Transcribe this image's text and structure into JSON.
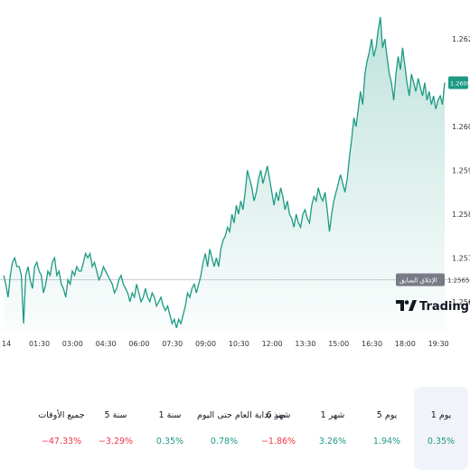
{
  "chart_data": {
    "type": "area",
    "line_color": "#1d9a84",
    "fill_color": "#1d9a84",
    "grid": false,
    "x_ticks": [
      "14",
      "01:30",
      "03:00",
      "04:30",
      "06:00",
      "07:30",
      "09:00",
      "10:30",
      "12:00",
      "13:30",
      "15:00",
      "16:30",
      "18:00",
      "19:30"
    ],
    "y_ticks": [
      "1.26200",
      "1.26000",
      "1.25900",
      "1.25800",
      "1.25700",
      "1.25600"
    ],
    "ylim": [
      1.2555,
      1.2626
    ],
    "current_price_label": "1.26097",
    "reference_line": {
      "label": "الإغلاق السابق",
      "value_label": "1.25650",
      "value": 1.2565
    },
    "series": [
      {
        "values": [
          1.2566,
          1.2564,
          1.2561,
          1.2566,
          1.2569,
          1.257,
          1.2568,
          1.2568,
          1.2566,
          1.2555,
          1.2566,
          1.2568,
          1.2565,
          1.2563,
          1.2568,
          1.2569,
          1.2567,
          1.2566,
          1.2562,
          1.2564,
          1.2567,
          1.2566,
          1.2569,
          1.257,
          1.2566,
          1.2567,
          1.2564,
          1.2563,
          1.2561,
          1.2565,
          1.2564,
          1.2567,
          1.2566,
          1.2568,
          1.2567,
          1.2567,
          1.2569,
          1.2571,
          1.257,
          1.2571,
          1.2568,
          1.2569,
          1.2567,
          1.2565,
          1.2566,
          1.2568,
          1.2567,
          1.2566,
          1.2565,
          1.2564,
          1.2562,
          1.2563,
          1.2565,
          1.2566,
          1.2564,
          1.2563,
          1.2562,
          1.256,
          1.2562,
          1.2561,
          1.2564,
          1.2562,
          1.256,
          1.2561,
          1.2563,
          1.2561,
          1.256,
          1.2562,
          1.2561,
          1.2559,
          1.256,
          1.2561,
          1.2559,
          1.2558,
          1.2559,
          1.2557,
          1.2555,
          1.2556,
          1.2554,
          1.2556,
          1.2555,
          1.2557,
          1.2559,
          1.2562,
          1.2561,
          1.2563,
          1.2564,
          1.2562,
          1.2564,
          1.2566,
          1.2569,
          1.2571,
          1.2568,
          1.2572,
          1.257,
          1.2568,
          1.257,
          1.2568,
          1.2572,
          1.2574,
          1.2575,
          1.2577,
          1.2576,
          1.258,
          1.2578,
          1.2582,
          1.258,
          1.2583,
          1.2581,
          1.2585,
          1.259,
          1.2588,
          1.2586,
          1.2583,
          1.2585,
          1.2588,
          1.259,
          1.2587,
          1.2589,
          1.2591,
          1.2588,
          1.2585,
          1.2582,
          1.2585,
          1.2583,
          1.2586,
          1.2584,
          1.2581,
          1.2583,
          1.258,
          1.2579,
          1.2577,
          1.258,
          1.2578,
          1.2577,
          1.258,
          1.2581,
          1.2579,
          1.2578,
          1.2582,
          1.2584,
          1.2583,
          1.2586,
          1.2584,
          1.2583,
          1.2585,
          1.2581,
          1.2576,
          1.258,
          1.2583,
          1.2585,
          1.2587,
          1.2589,
          1.2587,
          1.2585,
          1.2588,
          1.2593,
          1.2597,
          1.2602,
          1.26,
          1.2604,
          1.2608,
          1.2605,
          1.2612,
          1.2615,
          1.2617,
          1.262,
          1.2616,
          1.2618,
          1.2622,
          1.2625,
          1.2618,
          1.262,
          1.2616,
          1.2612,
          1.261,
          1.2606,
          1.2612,
          1.2616,
          1.2613,
          1.2618,
          1.2614,
          1.261,
          1.2607,
          1.2612,
          1.261,
          1.2608,
          1.2611,
          1.2609,
          1.2607,
          1.261,
          1.2606,
          1.2608,
          1.2605,
          1.2607,
          1.2604,
          1.2606,
          1.2607,
          1.2605,
          1.261
        ]
      }
    ]
  },
  "logo": {
    "name": "TradingView",
    "text": "TradingView",
    "icon": "tradingview-logo-icon"
  },
  "periods": [
    {
      "label": "1 يوم",
      "value": "0.35%",
      "direction": "up",
      "active": true
    },
    {
      "label": "5 يوم",
      "value": "1.94%",
      "direction": "up",
      "active": false
    },
    {
      "label": "1 شهر",
      "value": "3.26%",
      "direction": "up",
      "active": false
    },
    {
      "label": "6 شهر",
      "value": "−1.86%",
      "direction": "down",
      "active": false
    },
    {
      "label": "منذ بداية العام حتى اليوم",
      "value": "0.78%",
      "direction": "up",
      "active": false
    },
    {
      "label": "1 سنة",
      "value": "0.35%",
      "direction": "up",
      "active": false
    },
    {
      "label": "5 سنة",
      "value": "−3.29%",
      "direction": "down",
      "active": false
    },
    {
      "label": "جميع الأوقات",
      "value": "−47.33%",
      "direction": "down",
      "active": false
    }
  ],
  "colors": {
    "up": "#1d9a84",
    "down": "#f23645",
    "text": "#131722"
  }
}
